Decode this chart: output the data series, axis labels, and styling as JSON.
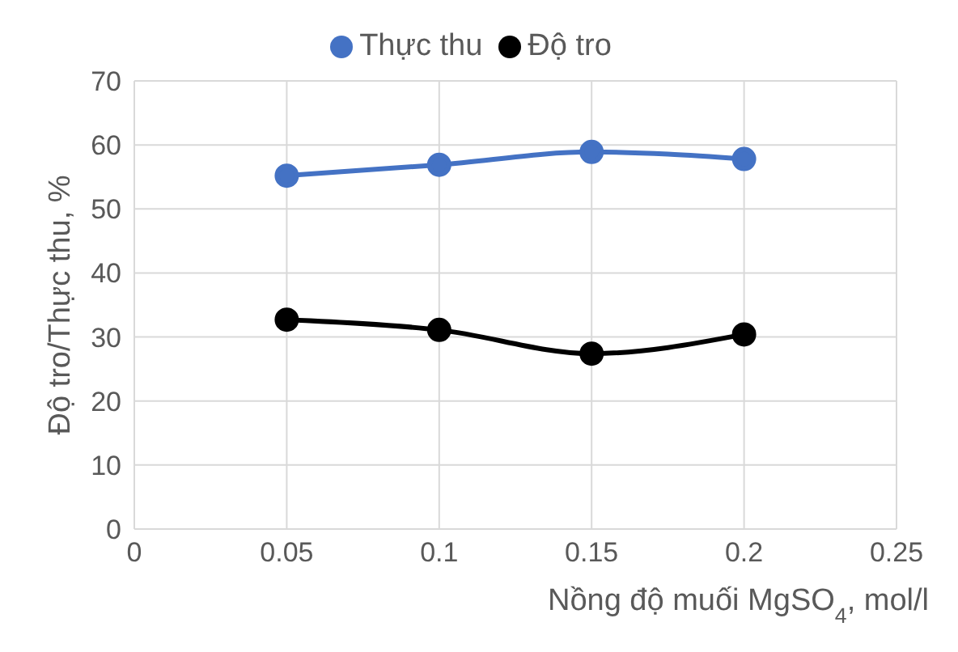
{
  "chart_data": {
    "type": "line",
    "xlabel": "Nồng độ muối MgSO$_{4}$, mol/l",
    "ylabel": "Độ tro/Thực thu, %",
    "x": [
      0.05,
      0.1,
      0.15,
      0.2
    ],
    "series": [
      {
        "name": "Thực thu",
        "color": "#4472c4",
        "values": [
          55.2,
          56.9,
          58.9,
          57.8
        ]
      },
      {
        "name": "Độ tro",
        "color": "#000000",
        "values": [
          32.7,
          31.1,
          27.4,
          30.4
        ]
      }
    ],
    "xlim": [
      0,
      0.25
    ],
    "xticks": [
      0,
      0.05,
      0.1,
      0.15,
      0.2,
      0.25
    ],
    "ylim": [
      0,
      70
    ],
    "yticks": [
      0,
      10,
      20,
      30,
      40,
      50,
      60,
      70
    ],
    "grid": true,
    "legend": "top",
    "marker": "circle",
    "line_style": "solid"
  }
}
